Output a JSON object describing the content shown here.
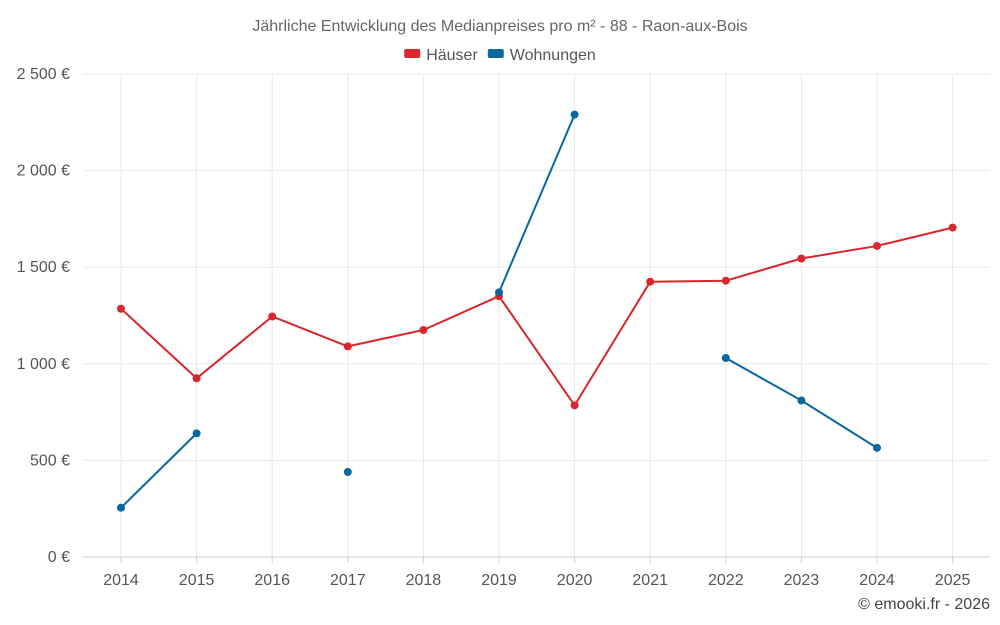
{
  "chart_data": {
    "type": "line",
    "title": "Jährliche Entwicklung des Medianpreises pro m² - 88 - Raon-aux-Bois",
    "xlabel": "",
    "ylabel": "",
    "categories": [
      "2014",
      "2015",
      "2016",
      "2017",
      "2018",
      "2019",
      "2020",
      "2021",
      "2022",
      "2023",
      "2024",
      "2025"
    ],
    "ylim": [
      0,
      2500
    ],
    "yticks": [
      {
        "value": 0,
        "label": "0 €"
      },
      {
        "value": 500,
        "label": "500 €"
      },
      {
        "value": 1000,
        "label": "1 000 €"
      },
      {
        "value": 1500,
        "label": "1 500 €"
      },
      {
        "value": 2000,
        "label": "2 000 €"
      },
      {
        "value": 2500,
        "label": "2 500 €"
      }
    ],
    "grid": true,
    "legend_position": "top-center",
    "series": [
      {
        "name": "Häuser",
        "color": "#d9262c",
        "values": [
          1285,
          925,
          1245,
          1090,
          1175,
          1350,
          785,
          1425,
          1430,
          1545,
          1610,
          1705
        ]
      },
      {
        "name": "Wohnungen",
        "color": "#0b67a0",
        "values": [
          255,
          640,
          null,
          440,
          null,
          1370,
          2290,
          null,
          1030,
          810,
          565,
          null
        ]
      }
    ]
  },
  "credit": "© emooki.fr - 2026"
}
